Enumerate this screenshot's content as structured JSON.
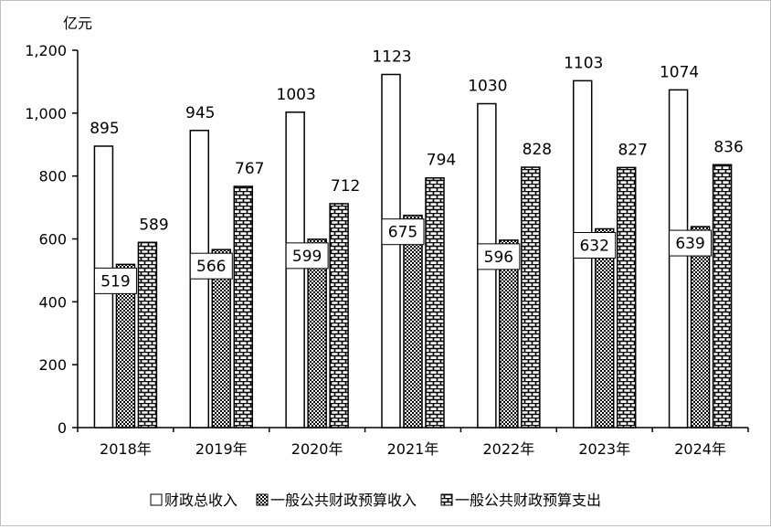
{
  "chart_data": {
    "type": "bar",
    "unit_label": "亿元",
    "categories": [
      "2018年",
      "2019年",
      "2020年",
      "2021年",
      "2022年",
      "2023年",
      "2024年"
    ],
    "ylim": [
      0,
      1200
    ],
    "yticks": [
      0,
      200,
      400,
      600,
      800,
      1000,
      1200
    ],
    "ytick_labels": [
      "0",
      "200",
      "400",
      "600",
      "800",
      "1,000",
      "1,200"
    ],
    "grid": false,
    "legend_position": "bottom",
    "series": [
      {
        "name": "财政总收入",
        "pattern": "none",
        "values": [
          895,
          945,
          1003,
          1123,
          1030,
          1103,
          1074
        ]
      },
      {
        "name": "一般公共财政预算收入",
        "pattern": "checker",
        "values": [
          519,
          566,
          599,
          675,
          596,
          632,
          639
        ]
      },
      {
        "name": "一般公共财政预算支出",
        "pattern": "brick",
        "values": [
          589,
          767,
          712,
          794,
          828,
          827,
          836
        ]
      }
    ],
    "colors": {
      "bar_stroke": "#000000",
      "bar_fill": "#ffffff",
      "label_box_border": "#000000"
    }
  }
}
